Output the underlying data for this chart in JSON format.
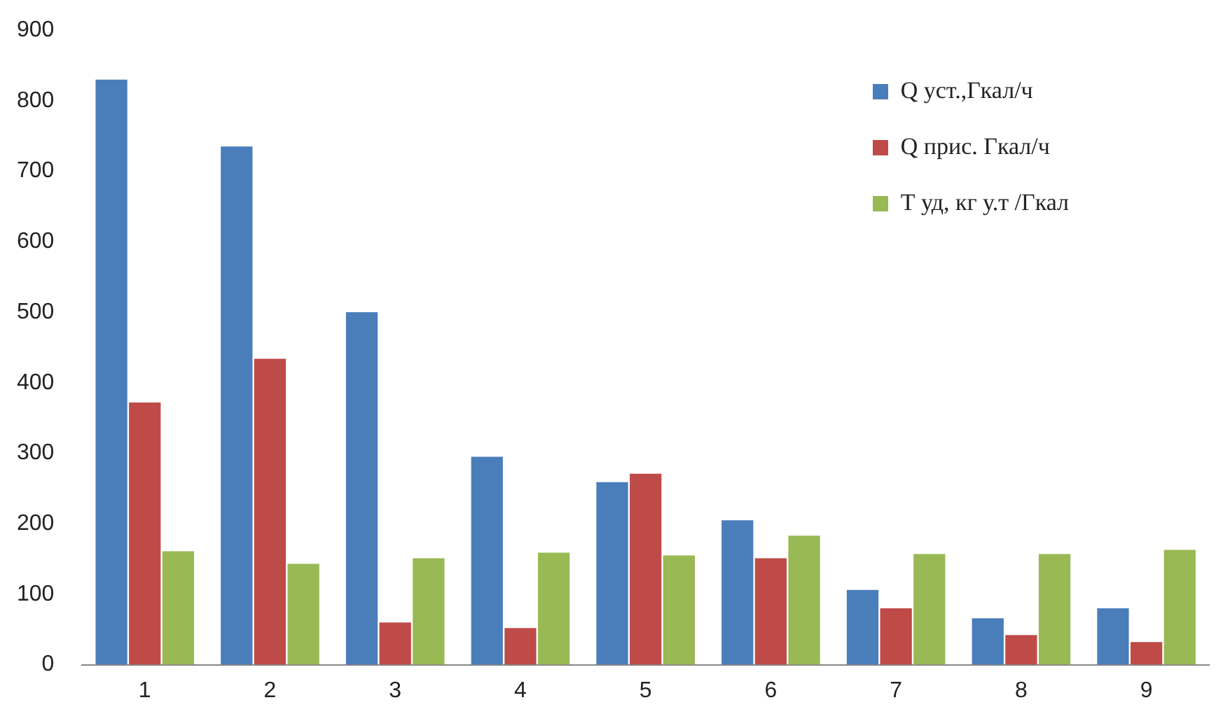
{
  "chart_data": {
    "type": "bar",
    "categories": [
      "1",
      "2",
      "3",
      "4",
      "5",
      "6",
      "7",
      "8",
      "9"
    ],
    "series": [
      {
        "name": "Q уст.,Гкал/ч",
        "color": "#4a7ebb",
        "values": [
          830,
          735,
          500,
          295,
          259,
          205,
          106,
          66,
          80
        ]
      },
      {
        "name": "Q прис. Гкал/ч",
        "color": "#be4b48",
        "values": [
          372,
          434,
          60,
          52,
          271,
          151,
          80,
          42,
          32
        ]
      },
      {
        "name": "Т уд, кг у.т /Гкал",
        "color": "#98b954",
        "values": [
          161,
          143,
          151,
          159,
          155,
          183,
          157,
          157,
          163
        ]
      }
    ],
    "ylim": [
      0,
      900
    ],
    "yticks": [
      0,
      100,
      200,
      300,
      400,
      500,
      600,
      700,
      800,
      900
    ],
    "grid": false,
    "legend": "top right"
  }
}
